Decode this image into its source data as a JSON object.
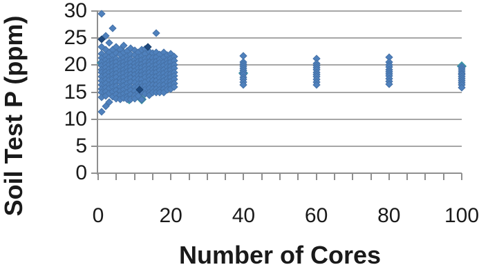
{
  "chart_data": {
    "type": "scatter",
    "xlabel": "Number of Cores",
    "ylabel": "Soil Test P (ppm)",
    "xlim": [
      0,
      100
    ],
    "ylim": [
      0,
      30
    ],
    "x_major_ticks": [
      0,
      20,
      40,
      60,
      80,
      100
    ],
    "x_minor_tick_step": 5,
    "y_ticks": [
      0,
      5,
      10,
      15,
      20,
      25,
      30
    ],
    "grid": "horizontal-only",
    "legend": "none",
    "marker": "diamond",
    "axis_color": "#8f8f8f",
    "grid_color": "#a6a6a6",
    "text_color": "#1a1a1a",
    "series": [
      {
        "name": "teal-markers",
        "color": "#3fa0b4",
        "columns": [
          {
            "x": 1,
            "ys": [
              20.4
            ]
          },
          {
            "x": 2,
            "ys": [
              18.9
            ]
          },
          {
            "x": 8.6,
            "ys": [
              13.6
            ]
          },
          {
            "x": 12,
            "ys": [
              13.6
            ]
          },
          {
            "x": 18,
            "ys": [
              16.6
            ]
          },
          {
            "x": 40,
            "ys": [
              18.5
            ]
          },
          {
            "x": 100,
            "ys": [
              19.8
            ]
          }
        ]
      },
      {
        "name": "blue-markers",
        "color": "#4f81bd",
        "columns": [
          {
            "x": 1,
            "ys": [
              29.5,
              23.4,
              22.1,
              21.3,
              20.6,
              19.9,
              19.2,
              18.6,
              17.9,
              17.1,
              16.3,
              15.6,
              14.9,
              14.1,
              11.3
            ]
          },
          {
            "x": 2,
            "ys": [
              25.4,
              22.8,
              21.7,
              20.9,
              20.2,
              19.5,
              18.8,
              18.1,
              17.4,
              16.6,
              15.8,
              15.1,
              14.3,
              12.4
            ]
          },
          {
            "x": 3,
            "ys": [
              24.1,
              22.4,
              21.4,
              20.7,
              20.0,
              19.3,
              18.6,
              17.9,
              17.2,
              16.4,
              15.7,
              14.8,
              13.2
            ]
          },
          {
            "x": 4,
            "ys": [
              26.8,
              22.9,
              21.8,
              21.0,
              20.3,
              19.6,
              18.9,
              18.2,
              17.5,
              16.7,
              15.9,
              15.1,
              14.2
            ]
          },
          {
            "x": 5,
            "ys": [
              23.3,
              22.2,
              21.2,
              20.5,
              19.8,
              19.1,
              18.4,
              17.7,
              16.9,
              16.1,
              15.3,
              14.5,
              13.8
            ]
          },
          {
            "x": 6,
            "ys": [
              22.9,
              21.9,
              21.0,
              20.3,
              19.6,
              18.9,
              18.2,
              17.5,
              16.8,
              16.0,
              15.2,
              14.4,
              13.7
            ]
          },
          {
            "x": 7,
            "ys": [
              23.6,
              22.3,
              21.3,
              20.6,
              19.9,
              19.2,
              18.5,
              17.8,
              17.0,
              16.2,
              15.5,
              14.7,
              13.9
            ]
          },
          {
            "x": 8,
            "ys": [
              22.6,
              21.7,
              20.9,
              20.2,
              19.5,
              18.8,
              18.1,
              17.4,
              16.6,
              15.8,
              15.0,
              14.2,
              13.6
            ]
          },
          {
            "x": 9,
            "ys": [
              23.1,
              22.0,
              21.1,
              20.4,
              19.7,
              19.0,
              18.3,
              17.6,
              16.8,
              16.0,
              15.3,
              14.5,
              13.7
            ]
          },
          {
            "x": 10,
            "ys": [
              22.7,
              21.8,
              21.0,
              20.3,
              19.6,
              18.9,
              18.2,
              17.5,
              16.7,
              15.9,
              15.2,
              14.4,
              13.8
            ]
          },
          {
            "x": 11,
            "ys": [
              22.4,
              21.5,
              20.7,
              20.0,
              19.4,
              18.7,
              18.0,
              17.3,
              16.5,
              15.8,
              15.0,
              14.3
            ]
          },
          {
            "x": 12,
            "ys": [
              22.8,
              21.7,
              20.9,
              20.2,
              19.5,
              18.8,
              18.1,
              17.4,
              16.6,
              15.9,
              15.1,
              13.6
            ]
          },
          {
            "x": 13,
            "ys": [
              23.0,
              22.1,
              21.2,
              20.5,
              19.8,
              19.1,
              18.4,
              17.7,
              16.9,
              16.1,
              15.4,
              14.7
            ]
          },
          {
            "x": 14,
            "ys": [
              22.5,
              21.4,
              20.6,
              20.0,
              19.3,
              18.6,
              17.9,
              17.2,
              16.4,
              15.7,
              15.0,
              14.4
            ]
          },
          {
            "x": 15,
            "ys": [
              22.2,
              21.3,
              20.5,
              19.8,
              19.2,
              18.5,
              17.8,
              17.1,
              16.3,
              15.6,
              14.9
            ]
          },
          {
            "x": 16,
            "ys": [
              25.9,
              22.4,
              21.5,
              20.7,
              20.0,
              19.3,
              18.6,
              17.9,
              17.1,
              16.4,
              15.6,
              15.0
            ]
          },
          {
            "x": 17,
            "ys": [
              22.0,
              21.1,
              20.4,
              19.7,
              19.0,
              18.3,
              17.6,
              16.9,
              16.2,
              15.5,
              14.9
            ]
          },
          {
            "x": 18,
            "ys": [
              22.3,
              21.4,
              20.6,
              19.9,
              19.2,
              18.5,
              17.8,
              17.1,
              16.3,
              15.6,
              15.0
            ]
          },
          {
            "x": 19,
            "ys": [
              21.8,
              21.0,
              20.3,
              19.6,
              18.9,
              18.2,
              17.5,
              16.8,
              16.1,
              15.4
            ]
          },
          {
            "x": 20,
            "ys": [
              22.1,
              21.2,
              20.5,
              19.8,
              19.1,
              18.4,
              17.7,
              17.0,
              16.3,
              15.6
            ]
          },
          {
            "x": 21,
            "ys": [
              21.6,
              20.8,
              20.1,
              19.4,
              18.7,
              18.0,
              17.3,
              16.6,
              15.9
            ]
          },
          {
            "x": 40,
            "ys": [
              21.7,
              20.6,
              20.2,
              19.8,
              19.4,
              19.0,
              18.6,
              18.2,
              17.8,
              17.3,
              16.8,
              16.4
            ]
          },
          {
            "x": 60,
            "ys": [
              21.2,
              20.3,
              19.9,
              19.5,
              19.1,
              18.7,
              18.3,
              17.9,
              17.4,
              16.9,
              16.3
            ]
          },
          {
            "x": 80,
            "ys": [
              21.4,
              20.5,
              20.0,
              19.6,
              19.2,
              18.8,
              18.4,
              18.0,
              17.5,
              17.0,
              16.5
            ]
          },
          {
            "x": 100,
            "ys": [
              19.6,
              19.25,
              18.9,
              18.55,
              18.2,
              17.85,
              17.5,
              17.1,
              16.7,
              16.3,
              15.8
            ]
          }
        ]
      },
      {
        "name": "dark-blue-markers",
        "color": "#1f497d",
        "columns": [
          {
            "x": 1,
            "ys": [
              24.8
            ]
          },
          {
            "x": 13.6,
            "ys": [
              23.3
            ]
          },
          {
            "x": 11.5,
            "ys": [
              15.4
            ]
          }
        ]
      }
    ]
  }
}
